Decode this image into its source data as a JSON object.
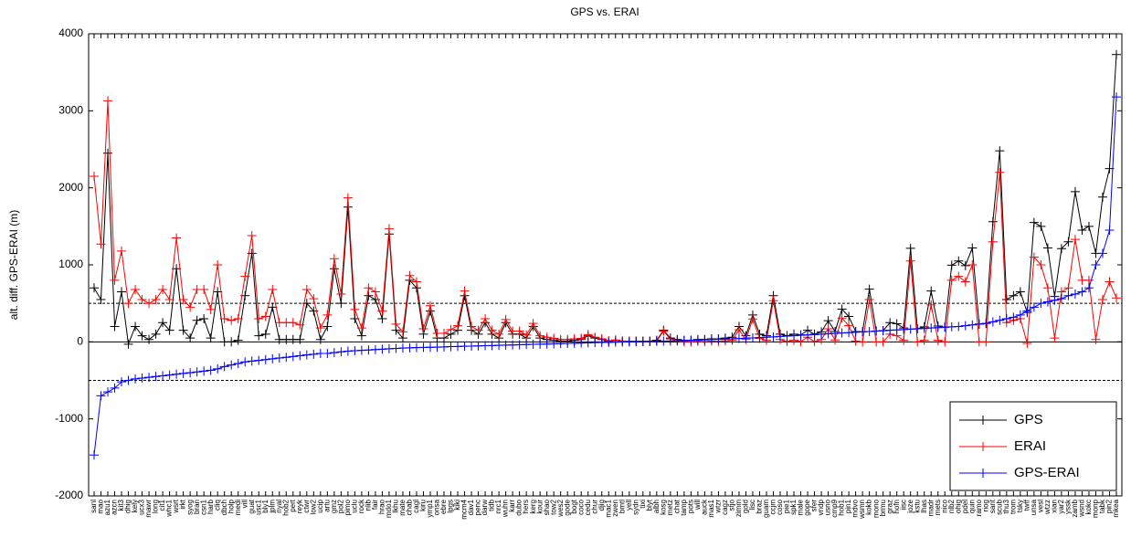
{
  "chart_data": {
    "type": "line",
    "title": "GPS vs. ERAI",
    "y_label": "alt. diff. GPS-ERAI (m)",
    "categories": [
      "sanl",
      "mao",
      "azu1",
      "azcn",
      "kit3",
      "dhig",
      "kely",
      "ucx3",
      "mawr",
      "long",
      "cit1",
      "whc1",
      "wsrt",
      "irkt",
      "syog",
      "bran",
      "csn1",
      "harb",
      "cliq",
      "dbch",
      "holp",
      "medi",
      "vill",
      "guat",
      "usc1",
      "bly1",
      "jplm",
      "nyal",
      "hob2",
      "pert",
      "reyk",
      "ctwr",
      "low2",
      "ucip",
      "artu",
      "gmz",
      "pol2",
      "pimo",
      "uclu",
      "rock",
      "nlib",
      "fair",
      "hrao",
      "mdo1",
      "lkhu",
      "mate",
      "chab",
      "cagl",
      "kiru",
      "ymp1",
      "onsa",
      "ebre",
      "lpgs",
      "kiki",
      "mcm4",
      "dav1",
      "penc",
      "darw",
      "tidb",
      "nrc1",
      "wuhn",
      "karr",
      "dubo",
      "hers",
      "kerg",
      "kour",
      "shao",
      "tow2",
      "wes2",
      "gode",
      "bogt",
      "coco",
      "cedu",
      "chur",
      "djig",
      "mac1",
      "zwen",
      "bmtl",
      "yell",
      "sydn",
      "tixi",
      "blyt",
      "albh",
      "kosg",
      "metz",
      "chat",
      "tamp",
      "pots",
      "will",
      "auck",
      "mas1",
      "wtzr",
      "cagz",
      "stjo",
      "zimm",
      "gold",
      "lisc",
      "braz",
      "guam",
      "ccjm",
      "coso",
      "pie1",
      "spk1",
      "male",
      "gope",
      "sfer",
      "vndp",
      "usno",
      "cmp9",
      "hob1",
      "pin1",
      "mdvo",
      "wsmn",
      "kokb",
      "mono",
      "brmu",
      "graz",
      "hofn",
      "iisc",
      "joze",
      "kstu",
      "lhas",
      "madr",
      "mets",
      "nico",
      "nlb2",
      "ohig",
      "pdel",
      "quin",
      "ramo",
      "riog",
      "sant",
      "scub",
      "thu3",
      "trom",
      "tsky",
      "twtf",
      "unsa",
      "vesl",
      "wtzz",
      "xian",
      "yar2",
      "yssk",
      "zamb",
      "wsnd",
      "kokc",
      "monp",
      "tabk",
      "pin2",
      "mkea"
    ],
    "series": [
      {
        "name": "GPS",
        "color": "#000000",
        "values": [
          700,
          550,
          2450,
          200,
          650,
          -30,
          200,
          80,
          30,
          100,
          250,
          150,
          950,
          150,
          50,
          280,
          300,
          50,
          650,
          0,
          0,
          20,
          600,
          1150,
          80,
          100,
          450,
          30,
          30,
          30,
          30,
          500,
          400,
          30,
          200,
          950,
          500,
          1750,
          300,
          80,
          600,
          550,
          300,
          1400,
          150,
          50,
          800,
          700,
          100,
          400,
          50,
          50,
          100,
          150,
          600,
          150,
          100,
          250,
          100,
          50,
          250,
          100,
          100,
          50,
          200,
          50,
          30,
          20,
          10,
          10,
          20,
          30,
          80,
          50,
          30,
          10,
          20,
          10,
          10,
          10,
          10,
          10,
          20,
          150,
          50,
          30,
          20,
          20,
          30,
          30,
          40,
          40,
          50,
          60,
          200,
          80,
          350,
          100,
          80,
          600,
          100,
          80,
          100,
          90,
          150,
          100,
          130,
          275,
          135,
          425,
          330,
          135,
          130,
          685,
          140,
          145,
          250,
          235,
          180,
          1215,
          170,
          195,
          660,
          205,
          190,
          995,
          1050,
          990,
          1220,
          230,
          240,
          1560,
          2480,
          550,
          600,
          650,
          380,
          1550,
          1500,
          1220,
          590,
          1210,
          1300,
          1950,
          1450,
          1500,
          1150,
          1880,
          2250,
          3730
        ]
      },
      {
        "name": "ERAI",
        "color": "#ff0000",
        "values": [
          2150,
          1270,
          3130,
          800,
          1180,
          500,
          680,
          550,
          500,
          550,
          680,
          550,
          1350,
          550,
          450,
          680,
          680,
          420,
          1000,
          300,
          280,
          300,
          850,
          1380,
          300,
          330,
          680,
          250,
          250,
          250,
          220,
          680,
          560,
          180,
          350,
          1080,
          620,
          1870,
          420,
          180,
          700,
          650,
          400,
          1470,
          230,
          130,
          860,
          780,
          170,
          470,
          110,
          110,
          160,
          210,
          660,
          200,
          150,
          300,
          150,
          100,
          290,
          140,
          140,
          90,
          240,
          80,
          60,
          45,
          30,
          30,
          40,
          45,
          95,
          60,
          40,
          15,
          25,
          12,
          10,
          8,
          5,
          5,
          10,
          140,
          38,
          15,
          2,
          0,
          7,
          4,
          10,
          7,
          14,
          20,
          156,
          32,
          298,
          44,
          20,
          535,
          30,
          5,
          20,
          5,
          60,
          5,
          30,
          170,
          25,
          310,
          210,
          10,
          0,
          550,
          0,
          0,
          100,
          80,
          20,
          1050,
          0,
          20,
          480,
          20,
          0,
          800,
          850,
          780,
          1000,
          0,
          0,
          1300,
          2200,
          250,
          280,
          300,
          -20,
          1100,
          1000,
          700,
          50,
          650,
          700,
          1330,
          800,
          800,
          30,
          550,
          780,
          570
        ]
      },
      {
        "name": "GPS-ERAI",
        "color": "#0000ff",
        "values": [
          -1470,
          -700,
          -650,
          -600,
          -520,
          -500,
          -480,
          -470,
          -460,
          -450,
          -440,
          -430,
          -420,
          -410,
          -400,
          -390,
          -380,
          -370,
          -350,
          -320,
          -300,
          -280,
          -260,
          -250,
          -240,
          -230,
          -220,
          -210,
          -200,
          -190,
          -180,
          -170,
          -160,
          -150,
          -150,
          -140,
          -130,
          -120,
          -115,
          -110,
          -105,
          -100,
          -95,
          -90,
          -85,
          -80,
          -78,
          -75,
          -72,
          -70,
          -68,
          -65,
          -62,
          -60,
          -57,
          -55,
          -52,
          -50,
          -48,
          -45,
          -42,
          -40,
          -38,
          -35,
          -32,
          -30,
          -28,
          -25,
          -22,
          -20,
          -18,
          -15,
          -13,
          -10,
          -8,
          -6,
          -4,
          -2,
          0,
          2,
          4,
          6,
          8,
          10,
          12,
          15,
          18,
          20,
          23,
          26,
          30,
          33,
          36,
          40,
          44,
          48,
          52,
          56,
          60,
          65,
          70,
          75,
          80,
          85,
          90,
          95,
          100,
          105,
          110,
          115,
          120,
          125,
          130,
          135,
          140,
          145,
          150,
          155,
          160,
          165,
          170,
          175,
          180,
          185,
          190,
          195,
          200,
          210,
          220,
          230,
          240,
          260,
          280,
          300,
          320,
          350,
          400,
          450,
          500,
          520,
          540,
          560,
          600,
          620,
          650,
          700,
          1000,
          1150,
          1450,
          3180
        ]
      }
    ],
    "ylim": [
      -2000,
      4000
    ],
    "yticks": [
      -2000,
      -1000,
      0,
      1000,
      2000,
      3000,
      4000
    ],
    "reference_lines": [
      {
        "value": 500,
        "style": "dashed"
      },
      {
        "value": -500,
        "style": "dashed"
      },
      {
        "value": 0,
        "style": "solid"
      }
    ],
    "legend": "lower right",
    "marker": "+"
  }
}
